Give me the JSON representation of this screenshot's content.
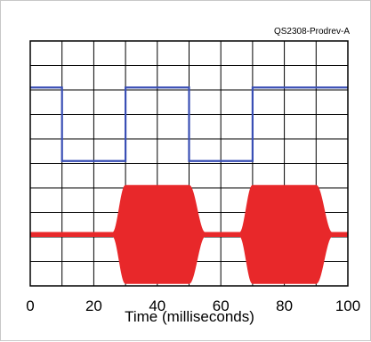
{
  "figure": {
    "code": "QS2308-Prodrev-A"
  },
  "chart_data": {
    "type": "line",
    "title": "",
    "xlabel": "Time (milliseconds)",
    "ylabel": "",
    "xlim": [
      0,
      100
    ],
    "x_ticks": [
      0,
      20,
      40,
      60,
      80,
      100
    ],
    "x_tick_labels": [
      "0",
      "20",
      "40",
      "60",
      "80",
      "100"
    ],
    "grid": true,
    "grid_divisions": {
      "x": 10,
      "y": 10
    },
    "y_units": "divisions",
    "ylim": [
      0,
      10
    ],
    "legend": "none",
    "series": [
      {
        "color": "#3a4fb5",
        "shape": "square-wave",
        "points": [
          [
            0,
            8.1
          ],
          [
            10,
            8.1
          ],
          [
            10,
            5.1
          ],
          [
            30,
            5.1
          ],
          [
            30,
            8.1
          ],
          [
            50,
            8.1
          ],
          [
            50,
            5.1
          ],
          [
            70,
            5.1
          ],
          [
            70,
            8.1
          ],
          [
            100,
            8.1
          ]
        ]
      },
      {
        "color": "#e8282a",
        "shape": "bursts",
        "center": 2.1,
        "idle_amplitude": 0.08,
        "burst_amplitude": 2.0,
        "bursts": [
          {
            "start": 26,
            "full_start": 30,
            "full_end": 50,
            "end": 55
          },
          {
            "start": 66,
            "full_start": 70,
            "full_end": 90,
            "end": 95
          }
        ]
      }
    ]
  }
}
